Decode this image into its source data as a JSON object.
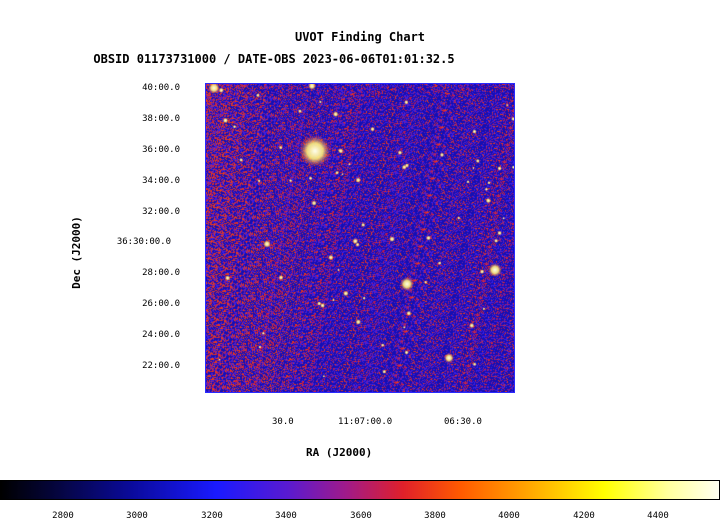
{
  "title": "UVOT Finding Chart",
  "subtitle": "OBSID 01173731000 / DATE-OBS 2023-06-06T01:01:32.5",
  "axes": {
    "x_title": "RA (J2000)",
    "y_title": "Dec (J2000)",
    "dec_ticks": [
      "40:00.0",
      "38:00.0",
      "36:00.0",
      "34:00.0",
      "32:00.0",
      "36:30:00.0",
      "28:00.0",
      "26:00.0",
      "24:00.0",
      "22:00.0"
    ],
    "ra_ticks": [
      "30.0",
      "11:07:00.0",
      "06:30.0"
    ]
  },
  "colorbar": {
    "ticks": [
      "2800",
      "3000",
      "3200",
      "3400",
      "3600",
      "3800",
      "4000",
      "4200",
      "4400"
    ],
    "colors": [
      "#000000",
      "#0a0a9a",
      "#1a1aff",
      "#a01a8a",
      "#e0202a",
      "#ff5a00",
      "#ffff00",
      "#fffff0"
    ]
  }
}
